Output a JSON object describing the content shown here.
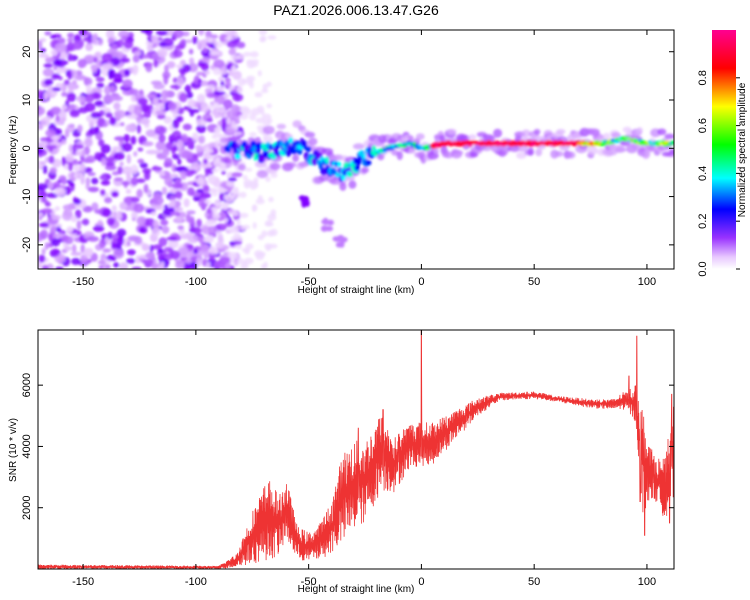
{
  "chart_data": [
    {
      "type": "heatmap",
      "title": "PAZ1.2026.006.13.47.G26",
      "xlabel": "Height of straight line (km)",
      "ylabel": "Frequency (Hz)",
      "xlim": [
        -170,
        112
      ],
      "ylim": [
        -25,
        24.5
      ],
      "xticks": [
        -150,
        -100,
        -50,
        0,
        50,
        100
      ],
      "yticks": [
        -20,
        -10,
        0,
        10,
        20
      ],
      "colorbar": {
        "label": "Normalized spectral amplitude",
        "range": [
          0,
          1
        ],
        "ticks": [
          "0.0",
          "0.2",
          "0.4",
          "0.6",
          "0.8"
        ],
        "tick_values": [
          0,
          0.2,
          0.4,
          0.6,
          0.8
        ],
        "colors": [
          "#ffffff",
          "#e8c8ff",
          "#8000ff",
          "#0000ff",
          "#00ffff",
          "#00ff00",
          "#ffff00",
          "#ff0000",
          "#ff00a0"
        ]
      },
      "regions": [
        {
          "name": "noise",
          "x_range": [
            -170,
            -85
          ],
          "freq_range": [
            -25,
            24.5
          ],
          "amplitude": "low"
        },
        {
          "name": "transition",
          "x_range": [
            -85,
            -20
          ],
          "freq_center": [
            0,
            -2,
            -5
          ],
          "amplitude": "medium"
        },
        {
          "name": "carrier",
          "x_range": [
            5,
            100
          ],
          "freq": 1.0,
          "amplitude": 1.0
        }
      ],
      "ridge": [
        {
          "x": -85,
          "f": 0
        },
        {
          "x": -70,
          "f": -1
        },
        {
          "x": -55,
          "f": 1
        },
        {
          "x": -45,
          "f": -3
        },
        {
          "x": -35,
          "f": -5
        },
        {
          "x": -25,
          "f": -2
        },
        {
          "x": -15,
          "f": 0
        },
        {
          "x": -5,
          "f": 1
        },
        {
          "x": 0,
          "f": 0
        },
        {
          "x": 10,
          "f": 1
        },
        {
          "x": 50,
          "f": 1
        },
        {
          "x": 80,
          "f": 1
        },
        {
          "x": 90,
          "f": 2
        },
        {
          "x": 100,
          "f": 1
        },
        {
          "x": 112,
          "f": 1
        }
      ],
      "side_feature": [
        {
          "x": -52,
          "f": -11
        },
        {
          "x": -42,
          "f": -16
        },
        {
          "x": -36,
          "f": -19
        }
      ]
    },
    {
      "type": "line",
      "xlabel": "Height of straight line (km)",
      "ylabel": "SNR (10 * v/v)",
      "xlim": [
        -170,
        112
      ],
      "ylim": [
        0,
        7800
      ],
      "xticks": [
        -150,
        -100,
        -50,
        0,
        50,
        100
      ],
      "yticks": [
        2000,
        4000,
        6000
      ],
      "color": "#ee3333",
      "series": [
        {
          "name": "SNR",
          "envelope": [
            {
              "x": -170,
              "lo": 0,
              "hi": 150
            },
            {
              "x": -90,
              "lo": 0,
              "hi": 100
            },
            {
              "x": -82,
              "lo": 50,
              "hi": 500
            },
            {
              "x": -75,
              "lo": 150,
              "hi": 1900
            },
            {
              "x": -68,
              "lo": 300,
              "hi": 3000
            },
            {
              "x": -63,
              "lo": 400,
              "hi": 2400
            },
            {
              "x": -60,
              "lo": 900,
              "hi": 3000
            },
            {
              "x": -55,
              "lo": 300,
              "hi": 1400
            },
            {
              "x": -50,
              "lo": 200,
              "hi": 1200
            },
            {
              "x": -45,
              "lo": 300,
              "hi": 1500
            },
            {
              "x": -40,
              "lo": 500,
              "hi": 2200
            },
            {
              "x": -35,
              "lo": 800,
              "hi": 3800
            },
            {
              "x": -30,
              "lo": 1200,
              "hi": 4200
            },
            {
              "x": -25,
              "lo": 1500,
              "hi": 4200
            },
            {
              "x": -18,
              "lo": 2500,
              "hi": 5100
            },
            {
              "x": -12,
              "lo": 2500,
              "hi": 4300
            },
            {
              "x": -5,
              "lo": 3300,
              "hi": 4800
            },
            {
              "x": 5,
              "lo": 3400,
              "hi": 4800
            },
            {
              "x": 15,
              "lo": 4200,
              "hi": 5200
            },
            {
              "x": 25,
              "lo": 5000,
              "hi": 5600
            },
            {
              "x": 35,
              "lo": 5500,
              "hi": 5750
            },
            {
              "x": 50,
              "lo": 5550,
              "hi": 5800
            },
            {
              "x": 60,
              "lo": 5450,
              "hi": 5650
            },
            {
              "x": 75,
              "lo": 5250,
              "hi": 5550
            },
            {
              "x": 85,
              "lo": 5200,
              "hi": 5550
            },
            {
              "x": 90,
              "lo": 5200,
              "hi": 5800
            },
            {
              "x": 95,
              "lo": 4800,
              "hi": 6000
            },
            {
              "x": 98,
              "lo": 1800,
              "hi": 5400
            },
            {
              "x": 103,
              "lo": 2300,
              "hi": 3700
            },
            {
              "x": 108,
              "lo": 1600,
              "hi": 3600
            },
            {
              "x": 112,
              "lo": 2200,
              "hi": 5500
            }
          ],
          "spikes": [
            {
              "x": 0.0,
              "y": 7800
            },
            {
              "x": -17,
              "y": 5200
            },
            {
              "x": -28,
              "y": 4600
            },
            {
              "x": -10,
              "y": 4400
            },
            {
              "x": 92,
              "y": 6300
            },
            {
              "x": 95.5,
              "y": 7600
            },
            {
              "x": 97,
              "y": 2200
            },
            {
              "x": 99,
              "y": 1100
            },
            {
              "x": 110,
              "y": 1500
            },
            {
              "x": 111,
              "y": 5700
            }
          ]
        }
      ]
    }
  ]
}
